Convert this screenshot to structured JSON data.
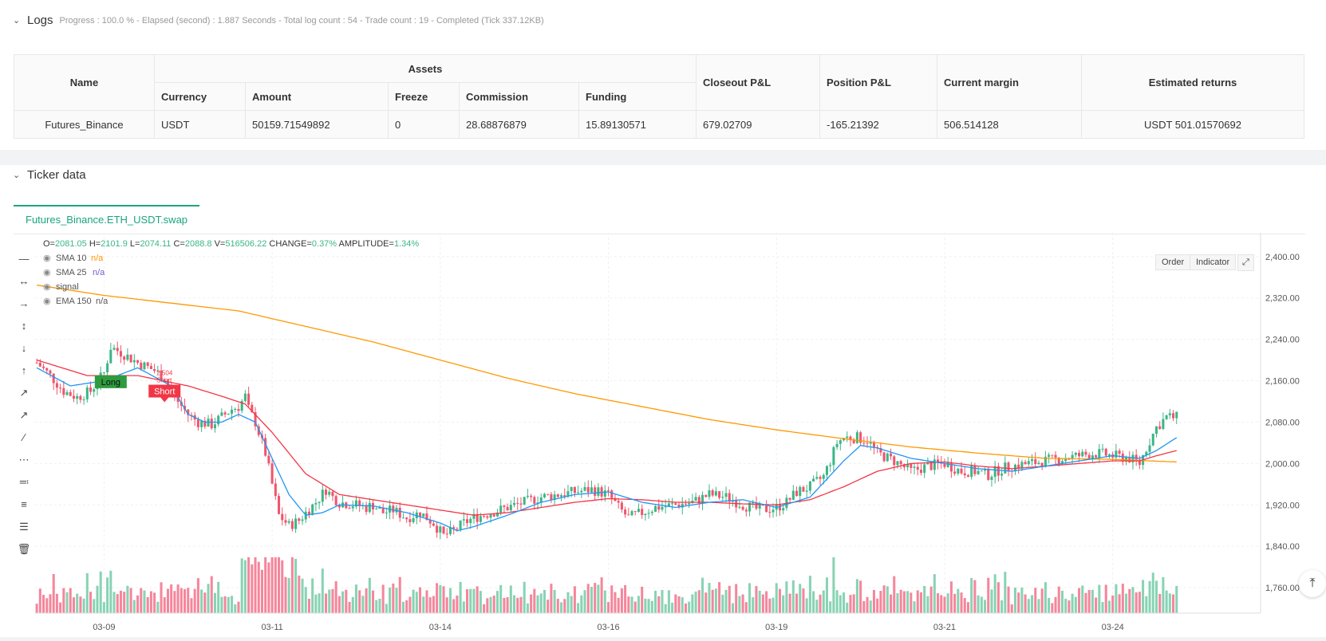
{
  "logs": {
    "title": "Logs",
    "meta": "Progress : 100.0 % - Elapsed (second) : 1.887  Seconds - Total log count : 54 - Trade count : 19 - Completed (Tick 337.12KB)",
    "table": {
      "h_name": "Name",
      "h_assets": "Assets",
      "h_currency": "Currency",
      "h_amount": "Amount",
      "h_freeze": "Freeze",
      "h_commission": "Commission",
      "h_funding": "Funding",
      "h_closeout": "Closeout P&L",
      "h_position": "Position P&L",
      "h_margin": "Current margin",
      "h_estimated": "Estimated returns",
      "row": {
        "name": "Futures_Binance",
        "currency": "USDT",
        "amount": "50159.71549892",
        "freeze": "0",
        "commission": "28.68876879",
        "funding": "15.89130571",
        "closeout": "679.02709",
        "position": "-165.21392",
        "margin": "506.514128",
        "estimated": "USDT 501.01570692"
      }
    }
  },
  "ticker": {
    "title": "Ticker data",
    "tab": "Futures_Binance.ETH_USDT.swap",
    "buttons": {
      "order": "Order",
      "indicator": "Indicator"
    }
  },
  "legend": {
    "ohlc_o_label": "O=",
    "ohlc_o": "2081.05",
    "ohlc_h_label": "H=",
    "ohlc_h": "2101.9",
    "ohlc_l_label": "L=",
    "ohlc_l": "2074.11",
    "ohlc_c_label": "C=",
    "ohlc_c": "2088.8",
    "ohlc_v_label": "V=",
    "ohlc_v": "516506.22",
    "change_label": "CHANGE=",
    "change": "0.37%",
    "amp_label": "AMPLITUDE=",
    "amp": "1.34%",
    "sma10": "SMA 10",
    "sma10_val": "n/a",
    "sma25": "SMA 25",
    "sma25_val": "n/a",
    "signal": "signal",
    "ema150": "EMA 150",
    "ema150_val": "n/a"
  },
  "colors": {
    "up": "#3cb687",
    "down": "#f0556b",
    "sma10": "#2196f3",
    "sma25": "#f23645",
    "ema150": "#ff9800",
    "volume_up": "#88d3b4",
    "volume_down": "#f5869b",
    "accent": "#1aa57e"
  },
  "chart_data": {
    "type": "candlestick",
    "y_ticks": [
      "2,400.00",
      "2,320.00",
      "2,240.00",
      "2,160.00",
      "2,080.00",
      "2,000.00",
      "1,920.00",
      "1,840.00",
      "1,760.00"
    ],
    "y_tick_values": [
      2400,
      2320,
      2240,
      2160,
      2080,
      2000,
      1920,
      1840,
      1760
    ],
    "ylim": [
      1737,
      2446
    ],
    "x_ticks": [
      "03-09",
      "03-11",
      "03-14",
      "03-16",
      "03-19",
      "03-21",
      "03-24"
    ],
    "x_tick_index": [
      20,
      70,
      120,
      170,
      220,
      270,
      320
    ],
    "n_bars": 340,
    "anchors": [
      [
        0,
        2195
      ],
      [
        4,
        2170
      ],
      [
        8,
        2140
      ],
      [
        12,
        2128
      ],
      [
        16,
        2140
      ],
      [
        20,
        2175
      ],
      [
        22,
        2225
      ],
      [
        25,
        2215
      ],
      [
        30,
        2195
      ],
      [
        35,
        2180
      ],
      [
        38,
        2165
      ],
      [
        40,
        2140
      ],
      [
        42,
        2120
      ],
      [
        45,
        2095
      ],
      [
        48,
        2080
      ],
      [
        50,
        2078
      ],
      [
        52,
        2075
      ],
      [
        55,
        2090
      ],
      [
        58,
        2105
      ],
      [
        60,
        2110
      ],
      [
        62,
        2130
      ],
      [
        63,
        2105
      ],
      [
        65,
        2080
      ],
      [
        68,
        2020
      ],
      [
        70,
        1960
      ],
      [
        72,
        1900
      ],
      [
        75,
        1880
      ],
      [
        78,
        1890
      ],
      [
        80,
        1905
      ],
      [
        83,
        1925
      ],
      [
        86,
        1950
      ],
      [
        88,
        1935
      ],
      [
        90,
        1925
      ],
      [
        95,
        1920
      ],
      [
        98,
        1915
      ],
      [
        100,
        1920
      ],
      [
        103,
        1905
      ],
      [
        106,
        1910
      ],
      [
        110,
        1895
      ],
      [
        114,
        1905
      ],
      [
        118,
        1885
      ],
      [
        121,
        1860
      ],
      [
        124,
        1870
      ],
      [
        127,
        1885
      ],
      [
        130,
        1895
      ],
      [
        135,
        1905
      ],
      [
        140,
        1915
      ],
      [
        145,
        1925
      ],
      [
        150,
        1935
      ],
      [
        155,
        1940
      ],
      [
        160,
        1945
      ],
      [
        165,
        1950
      ],
      [
        170,
        1940
      ],
      [
        173,
        1915
      ],
      [
        176,
        1895
      ],
      [
        180,
        1905
      ],
      [
        184,
        1915
      ],
      [
        190,
        1920
      ],
      [
        195,
        1925
      ],
      [
        200,
        1940
      ],
      [
        205,
        1935
      ],
      [
        210,
        1920
      ],
      [
        215,
        1910
      ],
      [
        220,
        1915
      ],
      [
        223,
        1925
      ],
      [
        226,
        1945
      ],
      [
        230,
        1955
      ],
      [
        234,
        1975
      ],
      [
        236,
        2005
      ],
      [
        238,
        2040
      ],
      [
        240,
        2050
      ],
      [
        244,
        2050
      ],
      [
        247,
        2045
      ],
      [
        250,
        2020
      ],
      [
        255,
        2005
      ],
      [
        260,
        1985
      ],
      [
        265,
        1995
      ],
      [
        270,
        2000
      ],
      [
        275,
        1985
      ],
      [
        279,
        1985
      ],
      [
        283,
        1978
      ],
      [
        287,
        1990
      ],
      [
        290,
        1995
      ],
      [
        295,
        2000
      ],
      [
        300,
        2005
      ],
      [
        305,
        2010
      ],
      [
        310,
        2015
      ],
      [
        315,
        2020
      ],
      [
        320,
        2015
      ],
      [
        325,
        2010
      ],
      [
        328,
        2000
      ],
      [
        330,
        2030
      ],
      [
        333,
        2070
      ],
      [
        336,
        2090
      ],
      [
        339,
        2089
      ]
    ],
    "sma10_anchors": [
      [
        0,
        2185
      ],
      [
        10,
        2150
      ],
      [
        20,
        2160
      ],
      [
        30,
        2185
      ],
      [
        40,
        2150
      ],
      [
        45,
        2095
      ],
      [
        50,
        2080
      ],
      [
        55,
        2080
      ],
      [
        60,
        2095
      ],
      [
        65,
        2080
      ],
      [
        70,
        2010
      ],
      [
        75,
        1940
      ],
      [
        80,
        1900
      ],
      [
        85,
        1905
      ],
      [
        90,
        1920
      ],
      [
        100,
        1918
      ],
      [
        110,
        1905
      ],
      [
        120,
        1885
      ],
      [
        125,
        1870
      ],
      [
        130,
        1878
      ],
      [
        140,
        1900
      ],
      [
        150,
        1925
      ],
      [
        160,
        1940
      ],
      [
        170,
        1945
      ],
      [
        180,
        1925
      ],
      [
        190,
        1915
      ],
      [
        200,
        1925
      ],
      [
        210,
        1930
      ],
      [
        220,
        1915
      ],
      [
        230,
        1935
      ],
      [
        240,
        2005
      ],
      [
        245,
        2035
      ],
      [
        250,
        2030
      ],
      [
        260,
        2010
      ],
      [
        270,
        2000
      ],
      [
        280,
        1990
      ],
      [
        290,
        1985
      ],
      [
        300,
        1995
      ],
      [
        310,
        2005
      ],
      [
        320,
        2015
      ],
      [
        328,
        2010
      ],
      [
        333,
        2025
      ],
      [
        339,
        2050
      ]
    ],
    "sma25_anchors": [
      [
        0,
        2200
      ],
      [
        15,
        2170
      ],
      [
        30,
        2170
      ],
      [
        45,
        2150
      ],
      [
        55,
        2130
      ],
      [
        62,
        2115
      ],
      [
        70,
        2060
      ],
      [
        80,
        1980
      ],
      [
        90,
        1940
      ],
      [
        100,
        1930
      ],
      [
        110,
        1920
      ],
      [
        120,
        1910
      ],
      [
        130,
        1900
      ],
      [
        140,
        1905
      ],
      [
        150,
        1915
      ],
      [
        160,
        1925
      ],
      [
        170,
        1932
      ],
      [
        180,
        1930
      ],
      [
        190,
        1925
      ],
      [
        200,
        1925
      ],
      [
        210,
        1922
      ],
      [
        220,
        1920
      ],
      [
        230,
        1930
      ],
      [
        240,
        1955
      ],
      [
        250,
        1985
      ],
      [
        260,
        2000
      ],
      [
        270,
        2003
      ],
      [
        280,
        1995
      ],
      [
        290,
        1990
      ],
      [
        300,
        1995
      ],
      [
        310,
        2000
      ],
      [
        320,
        2005
      ],
      [
        328,
        2005
      ],
      [
        333,
        2015
      ],
      [
        339,
        2025
      ]
    ],
    "ema150_anchors": [
      [
        0,
        2345
      ],
      [
        20,
        2325
      ],
      [
        40,
        2310
      ],
      [
        60,
        2295
      ],
      [
        80,
        2265
      ],
      [
        100,
        2235
      ],
      [
        120,
        2200
      ],
      [
        140,
        2165
      ],
      [
        160,
        2135
      ],
      [
        180,
        2110
      ],
      [
        200,
        2085
      ],
      [
        220,
        2065
      ],
      [
        240,
        2048
      ],
      [
        260,
        2032
      ],
      [
        280,
        2020
      ],
      [
        300,
        2010
      ],
      [
        320,
        2008
      ],
      [
        339,
        2003
      ]
    ],
    "markers": [
      {
        "index": 22,
        "price": 2158,
        "label": "Long",
        "kind": "long"
      },
      {
        "index": 38,
        "price": 2140,
        "label": "Short",
        "kind": "short"
      }
    ],
    "marker_annot": [
      "2.504",
      "Short"
    ],
    "volume_max": 100
  }
}
